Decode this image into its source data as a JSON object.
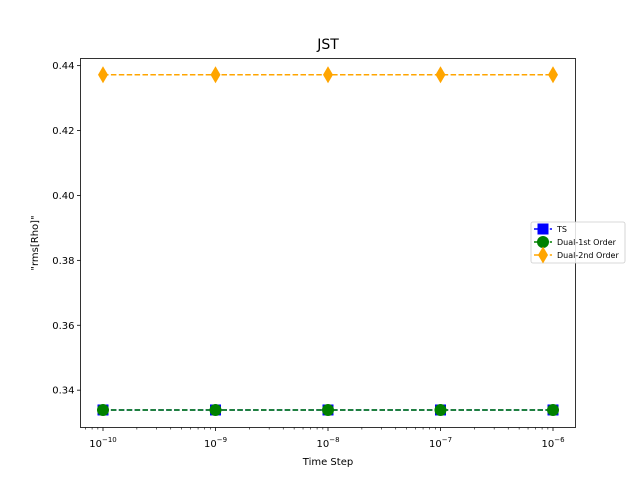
{
  "chart_data": {
    "type": "scatter",
    "title": "JST",
    "xlabel": "Time Step",
    "ylabel": "\"rms[Rho]\"",
    "x_scale": "log",
    "x": [
      1e-10,
      1e-09,
      1e-08,
      1e-07,
      1e-06
    ],
    "x_tick_labels": [
      {
        "base": "10",
        "exp": "−10"
      },
      {
        "base": "10",
        "exp": "−9"
      },
      {
        "base": "10",
        "exp": "−8"
      },
      {
        "base": "10",
        "exp": "−7"
      },
      {
        "base": "10",
        "exp": "−6"
      }
    ],
    "ylim": [
      0.3285,
      0.4422
    ],
    "y_ticks": [
      0.34,
      0.36,
      0.38,
      0.4,
      0.42,
      0.44
    ],
    "y_tick_labels": [
      "0.34",
      "0.36",
      "0.38",
      "0.40",
      "0.42",
      "0.44"
    ],
    "legend_position": "center-right",
    "series": [
      {
        "name": "TS",
        "values": [
          0.3339,
          0.3339,
          0.3339,
          0.3339,
          0.3339
        ],
        "color": "#0000ff",
        "marker": "square"
      },
      {
        "name": "Dual-1st Order",
        "values": [
          0.3339,
          0.3339,
          0.3339,
          0.3339,
          0.3339
        ],
        "color": "#008000",
        "marker": "circle"
      },
      {
        "name": "Dual-2nd Order",
        "values": [
          0.4372,
          0.4372,
          0.4372,
          0.4372,
          0.4372
        ],
        "color": "#ffa500",
        "marker": "diamond"
      }
    ]
  }
}
